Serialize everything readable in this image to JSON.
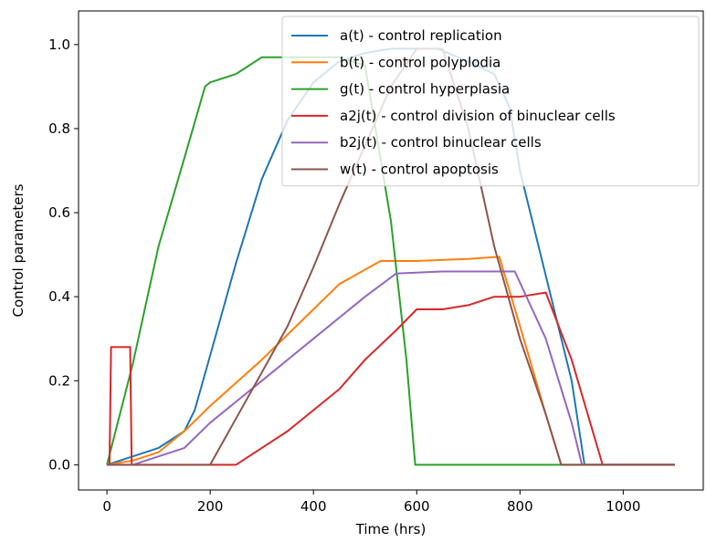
{
  "chart_data": {
    "type": "line",
    "xlabel": "Time (hrs)",
    "ylabel": "Control parameters",
    "xlim": [
      -55,
      1155
    ],
    "ylim": [
      -0.06,
      1.08
    ],
    "xticks": [
      0,
      200,
      400,
      600,
      800,
      1000
    ],
    "xtick_labels": [
      "0",
      "200",
      "400",
      "600",
      "800",
      "1000"
    ],
    "yticks": [
      0.0,
      0.2,
      0.4,
      0.6,
      0.8,
      1.0
    ],
    "ytick_labels": [
      "0.0",
      "0.2",
      "0.4",
      "0.6",
      "0.8",
      "1.0"
    ],
    "grid": false,
    "legend_position": "upper right",
    "series": [
      {
        "name": "a(t) - control replication",
        "color": "#1f77b4",
        "x": [
          0,
          50,
          100,
          150,
          170,
          200,
          250,
          300,
          350,
          400,
          450,
          500,
          550,
          600,
          640,
          700,
          750,
          780,
          800,
          850,
          900,
          925,
          1100
        ],
        "y": [
          0,
          0.02,
          0.04,
          0.08,
          0.13,
          0.26,
          0.48,
          0.68,
          0.82,
          0.91,
          0.96,
          0.98,
          0.99,
          0.99,
          0.99,
          0.96,
          0.93,
          0.85,
          0.7,
          0.45,
          0.2,
          0.0,
          0.0
        ]
      },
      {
        "name": "b(t) - control polyplodia",
        "color": "#ff7f0e",
        "x": [
          0,
          50,
          100,
          150,
          200,
          300,
          400,
          450,
          530,
          600,
          700,
          760,
          800,
          850,
          880,
          1100
        ],
        "y": [
          0,
          0.01,
          0.03,
          0.08,
          0.14,
          0.25,
          0.37,
          0.43,
          0.485,
          0.485,
          0.49,
          0.495,
          0.33,
          0.12,
          0.0,
          0.0
        ]
      },
      {
        "name": "g(t) - control hyperplasia",
        "color": "#2ca02c",
        "x": [
          0,
          50,
          100,
          150,
          190,
          200,
          250,
          300,
          350,
          400,
          450,
          500,
          550,
          580,
          597,
          600,
          1100
        ],
        "y": [
          0,
          0.24,
          0.52,
          0.73,
          0.9,
          0.91,
          0.93,
          0.97,
          0.97,
          0.97,
          0.97,
          0.95,
          0.58,
          0.25,
          0.0,
          0.0,
          0.0
        ]
      },
      {
        "name": "a2j(t) - control division of binuclear cells",
        "color": "#d62728",
        "x": [
          0,
          5,
          8,
          45,
          48,
          50,
          200,
          250,
          300,
          350,
          400,
          450,
          500,
          560,
          600,
          650,
          700,
          750,
          800,
          850,
          900,
          960,
          1100
        ],
        "y": [
          0,
          0,
          0.28,
          0.28,
          0.0,
          0.0,
          0.0,
          0.0,
          0.04,
          0.08,
          0.13,
          0.18,
          0.25,
          0.32,
          0.37,
          0.37,
          0.38,
          0.4,
          0.4,
          0.41,
          0.25,
          0.0,
          0.0
        ]
      },
      {
        "name": "b2j(t) - control binuclear cells",
        "color": "#9467bd",
        "x": [
          0,
          50,
          150,
          200,
          300,
          400,
          500,
          560,
          650,
          750,
          790,
          850,
          900,
          920,
          1100
        ],
        "y": [
          0,
          0.0,
          0.04,
          0.1,
          0.2,
          0.3,
          0.4,
          0.455,
          0.46,
          0.46,
          0.46,
          0.3,
          0.1,
          0.0,
          0.0
        ]
      },
      {
        "name": "w(t) - control apoptosis",
        "color": "#8c564b",
        "x": [
          0,
          200,
          250,
          300,
          350,
          400,
          450,
          500,
          550,
          600,
          650,
          700,
          750,
          800,
          850,
          880,
          1100
        ],
        "y": [
          0,
          0,
          0.11,
          0.22,
          0.33,
          0.47,
          0.62,
          0.76,
          0.9,
          0.99,
          0.99,
          0.8,
          0.52,
          0.3,
          0.12,
          0.0,
          0.0
        ]
      }
    ]
  }
}
